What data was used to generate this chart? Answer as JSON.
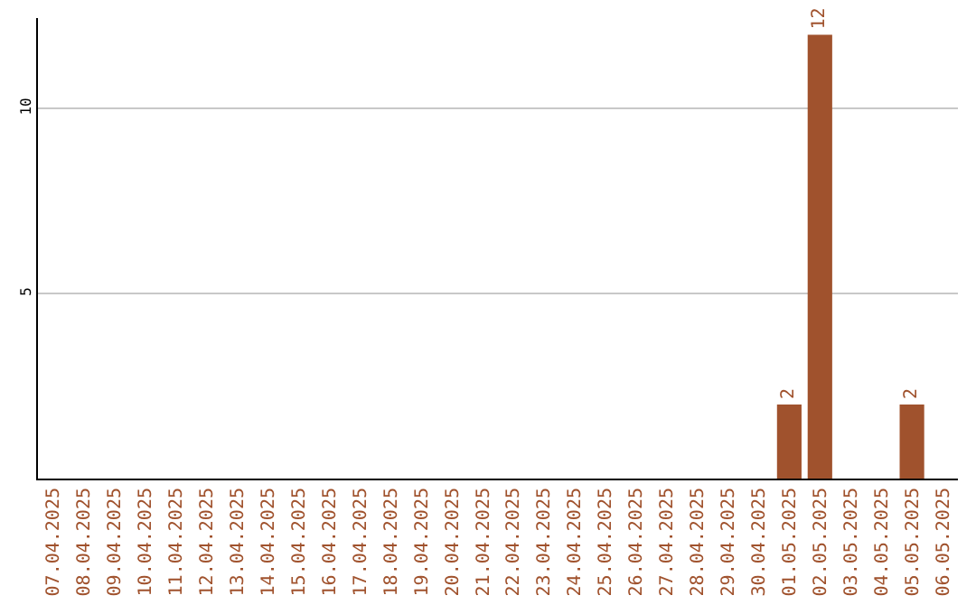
{
  "chart_data": {
    "type": "bar",
    "categories": [
      "07.04.2025",
      "08.04.2025",
      "09.04.2025",
      "10.04.2025",
      "11.04.2025",
      "12.04.2025",
      "13.04.2025",
      "14.04.2025",
      "15.04.2025",
      "16.04.2025",
      "17.04.2025",
      "18.04.2025",
      "19.04.2025",
      "20.04.2025",
      "21.04.2025",
      "22.04.2025",
      "23.04.2025",
      "24.04.2025",
      "25.04.2025",
      "26.04.2025",
      "27.04.2025",
      "28.04.2025",
      "29.04.2025",
      "30.04.2025",
      "01.05.2025",
      "02.05.2025",
      "03.05.2025",
      "04.05.2025",
      "05.05.2025",
      "06.05.2025"
    ],
    "values": [
      0,
      0,
      0,
      0,
      0,
      0,
      0,
      0,
      0,
      0,
      0,
      0,
      0,
      0,
      0,
      0,
      0,
      0,
      0,
      0,
      0,
      0,
      0,
      0,
      2,
      12,
      0,
      0,
      2,
      0
    ],
    "value_labels": [
      null,
      null,
      null,
      null,
      null,
      null,
      null,
      null,
      null,
      null,
      null,
      null,
      null,
      null,
      null,
      null,
      null,
      null,
      null,
      null,
      null,
      null,
      null,
      null,
      "2",
      "12",
      null,
      null,
      "2",
      null
    ],
    "color": "#a0522d",
    "ylim": [
      0,
      12.45
    ],
    "yticks": [
      5,
      10
    ],
    "grid": "y",
    "legend": false
  }
}
